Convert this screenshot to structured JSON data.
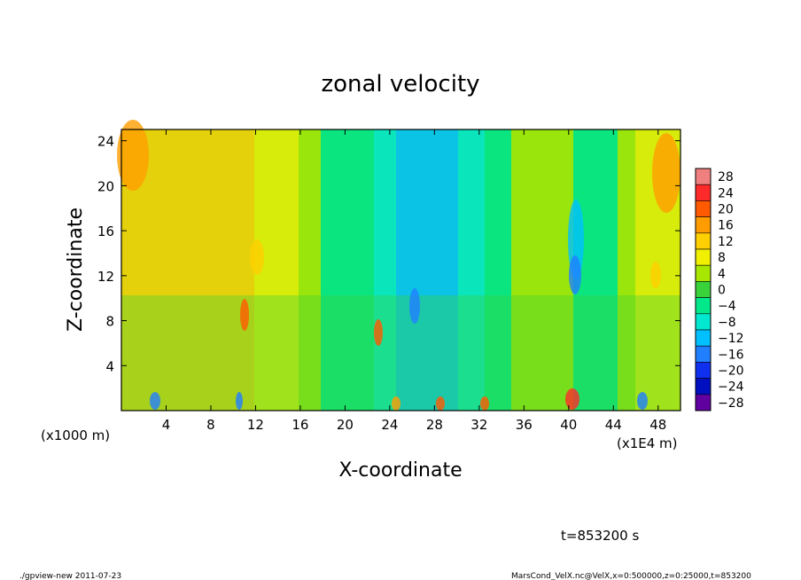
{
  "chart_data": {
    "type": "heatmap",
    "title": "zonal velocity",
    "xlabel": "X-coordinate",
    "ylabel": "Z-coordinate",
    "x_unit_left": "(x1000 m)",
    "x_unit_right": "(x1E4 m)",
    "xlim": [
      0,
      50
    ],
    "ylim": [
      0,
      25
    ],
    "x_ticks": [
      4,
      8,
      12,
      16,
      20,
      24,
      28,
      32,
      36,
      40,
      44,
      48
    ],
    "y_ticks": [
      4,
      8,
      12,
      16,
      20,
      24
    ],
    "colorbar": {
      "levels": [
        28,
        24,
        20,
        16,
        12,
        8,
        4,
        0,
        -4,
        -8,
        -12,
        -16,
        -20,
        -24,
        -28
      ],
      "labels": [
        "28",
        "24",
        "20",
        "16",
        "12",
        "8",
        "4",
        "0",
        "−4",
        "−8",
        "−12",
        "−16",
        "−20",
        "−24",
        "−28"
      ],
      "colors": [
        "#f08080",
        "#ff2a2a",
        "#ff5a00",
        "#ff9d00",
        "#ffd000",
        "#f0f000",
        "#a8e800",
        "#3ad23a",
        "#00e88a",
        "#00e8d0",
        "#00c0ff",
        "#2080ff",
        "#1030f0",
        "#0010c0",
        "#6000a0"
      ]
    }
  },
  "annotations": {
    "time": "t=853200 s",
    "footer_left": "./gpview-new   2011-07-23",
    "footer_right": "MarsCond_VelX.nc@VelX,x=0:500000,z=0:25000,t=853200"
  }
}
